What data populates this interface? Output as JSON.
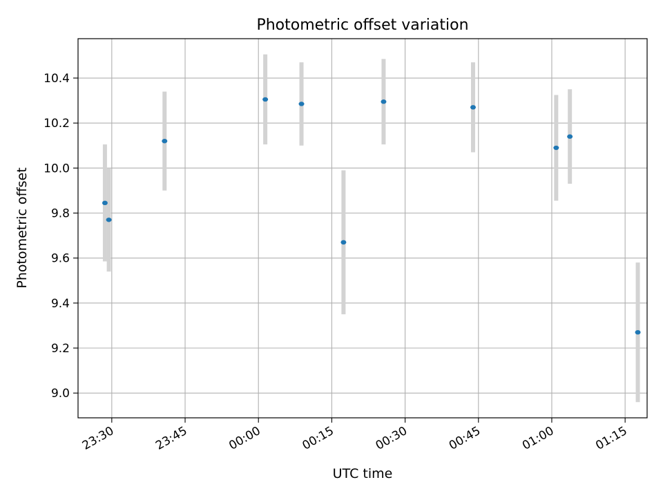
{
  "chart_data": {
    "type": "scatter",
    "title": "Photometric offset variation",
    "xlabel": "UTC time",
    "ylabel": "Photometric offset",
    "x_axis_type": "time",
    "x_ticks": [
      "23:30",
      "23:45",
      "00:00",
      "00:15",
      "00:30",
      "00:45",
      "01:00",
      "01:15"
    ],
    "x_tick_values_minutes": [
      -30,
      -15,
      0,
      15,
      30,
      45,
      60,
      75
    ],
    "xlim_minutes": [
      -36.9,
      79.5
    ],
    "y_ticks": [
      "9.0",
      "9.2",
      "9.4",
      "9.6",
      "9.8",
      "10.0",
      "10.2",
      "10.4"
    ],
    "y_tick_values": [
      9.0,
      9.2,
      9.4,
      9.6,
      9.8,
      10.0,
      10.2,
      10.4
    ],
    "ylim": [
      8.89,
      10.575
    ],
    "grid": true,
    "series": [
      {
        "x": [
          "23:28:36",
          "23:29:24",
          "23:40:48",
          "00:01:24",
          "00:08:48",
          "00:17:24",
          "00:25:36",
          "00:43:54",
          "01:00:54",
          "01:03:42",
          "01:17:36"
        ],
        "x_minutes": [
          -31.4,
          -30.6,
          -19.2,
          1.4,
          8.8,
          17.4,
          25.6,
          43.9,
          60.9,
          63.7,
          77.6
        ],
        "y": [
          9.845,
          9.77,
          10.12,
          10.305,
          10.285,
          9.67,
          10.295,
          10.27,
          10.09,
          10.14,
          9.27
        ],
        "yerr": [
          0.26,
          0.23,
          0.22,
          0.2,
          0.185,
          0.32,
          0.19,
          0.2,
          0.235,
          0.21,
          0.31
        ],
        "marker_color": "#1f77b4",
        "errorbar_color": "#d3d3d3"
      }
    ]
  }
}
